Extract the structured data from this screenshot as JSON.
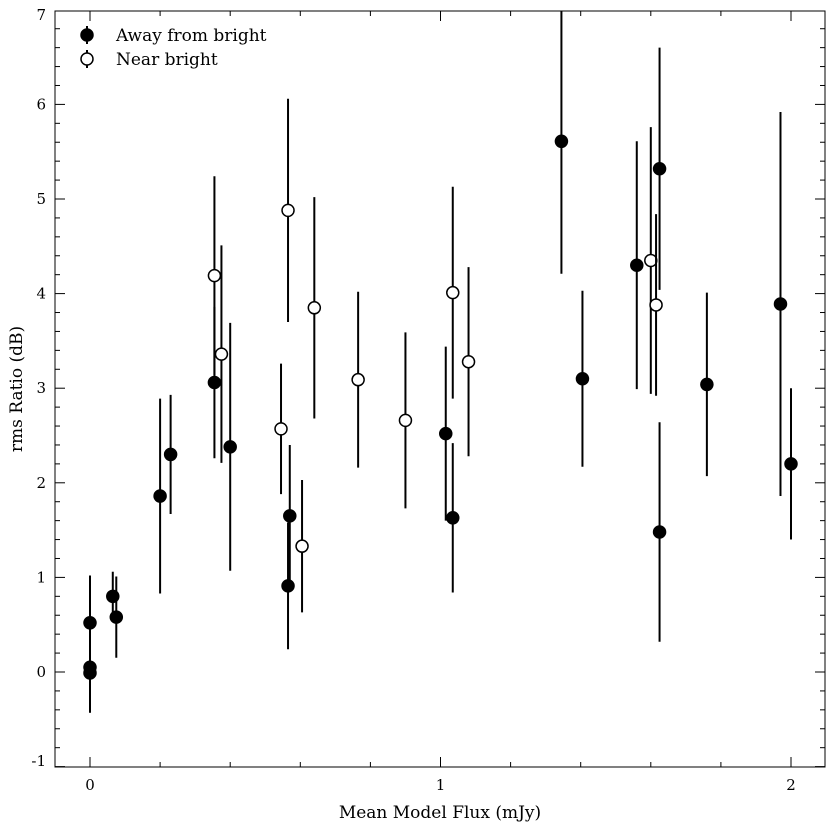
{
  "chart_data": {
    "type": "scatter",
    "title": "",
    "xlabel": "Mean Model Flux (mJy)",
    "ylabel": "rms Ratio (dB)",
    "xlim": [
      -0.1,
      2.1
    ],
    "ylim": [
      -1,
      7
    ],
    "xticks": [
      0,
      1,
      2
    ],
    "xtick_labels": [
      "0",
      "1",
      "2"
    ],
    "x_minor_step": 0.2,
    "yticks": [
      -1,
      0,
      1,
      2,
      3,
      4,
      5,
      6,
      7
    ],
    "ytick_labels": [
      "-1",
      "0",
      "1",
      "2",
      "3",
      "4",
      "5",
      "6",
      "7"
    ],
    "y_minor_step": 0.2,
    "grid": false,
    "legend_position": "top-left",
    "series": [
      {
        "name": "Away from bright",
        "marker": "filled-circle",
        "color": "#000000",
        "points": [
          {
            "x": 0.0,
            "y": 0.52,
            "err": 0.5
          },
          {
            "x": 0.0,
            "y": 0.05,
            "err": 0.48
          },
          {
            "x": 0.0,
            "y": -0.01,
            "err": 0.42
          },
          {
            "x": 0.065,
            "y": 0.8,
            "err": 0.26
          },
          {
            "x": 0.075,
            "y": 0.58,
            "err": 0.43
          },
          {
            "x": 0.2,
            "y": 1.86,
            "err": 1.03
          },
          {
            "x": 0.23,
            "y": 2.3,
            "err": 0.63
          },
          {
            "x": 0.355,
            "y": 3.06,
            "err": 0.8
          },
          {
            "x": 0.4,
            "y": 2.38,
            "err": 1.31
          },
          {
            "x": 0.565,
            "y": 0.91,
            "err": 0.67
          },
          {
            "x": 0.57,
            "y": 1.65,
            "err": 0.75
          },
          {
            "x": 1.015,
            "y": 2.52,
            "err": 0.92
          },
          {
            "x": 1.035,
            "y": 1.63,
            "err": 0.79
          },
          {
            "x": 1.345,
            "y": 5.61,
            "err": 1.4
          },
          {
            "x": 1.405,
            "y": 3.1,
            "err": 0.93
          },
          {
            "x": 1.56,
            "y": 4.3,
            "err": 1.31
          },
          {
            "x": 1.625,
            "y": 5.32,
            "err": 1.28
          },
          {
            "x": 1.625,
            "y": 1.48,
            "err": 1.16
          },
          {
            "x": 1.76,
            "y": 3.04,
            "err": 0.97
          },
          {
            "x": 1.97,
            "y": 3.89,
            "err": 2.03
          },
          {
            "x": 2.0,
            "y": 2.2,
            "err": 0.8
          }
        ]
      },
      {
        "name": "Near bright",
        "marker": "open-circle",
        "color": "#000000",
        "points": [
          {
            "x": 0.355,
            "y": 4.19,
            "err": 1.05
          },
          {
            "x": 0.375,
            "y": 3.36,
            "err": 1.15
          },
          {
            "x": 0.545,
            "y": 2.57,
            "err": 0.69
          },
          {
            "x": 0.565,
            "y": 4.88,
            "err": 1.18
          },
          {
            "x": 0.605,
            "y": 1.33,
            "err": 0.7
          },
          {
            "x": 0.64,
            "y": 3.85,
            "err": 1.17
          },
          {
            "x": 0.765,
            "y": 3.09,
            "err": 0.93
          },
          {
            "x": 0.9,
            "y": 2.66,
            "err": 0.93
          },
          {
            "x": 1.035,
            "y": 4.01,
            "err": 1.12
          },
          {
            "x": 1.08,
            "y": 3.28,
            "err": 1.0
          },
          {
            "x": 1.6,
            "y": 4.35,
            "err": 1.41
          },
          {
            "x": 1.615,
            "y": 3.88,
            "err": 0.96
          }
        ]
      }
    ]
  }
}
